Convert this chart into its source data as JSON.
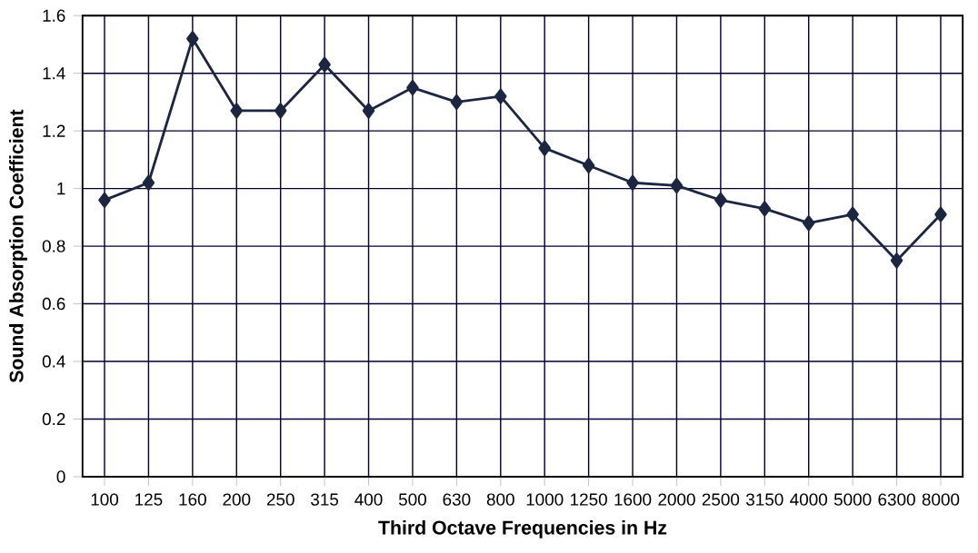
{
  "chart_data": {
    "type": "line",
    "xlabel": "Third Octave Frequencies in Hz",
    "ylabel": "Sound Absorption Coefficient",
    "categories": [
      "100",
      "125",
      "160",
      "200",
      "250",
      "315",
      "400",
      "500",
      "630",
      "800",
      "1000",
      "1250",
      "1600",
      "2000",
      "2500",
      "3150",
      "4000",
      "5000",
      "6300",
      "8000"
    ],
    "series": [
      {
        "color": "#1c2640",
        "values": [
          0.96,
          1.02,
          1.52,
          1.27,
          1.27,
          1.43,
          1.27,
          1.35,
          1.3,
          1.32,
          1.14,
          1.08,
          1.02,
          1.01,
          0.96,
          0.93,
          0.88,
          0.91,
          0.75,
          0.91
        ]
      }
    ],
    "ylim": [
      0,
      1.6
    ],
    "yticks": [
      0,
      0.2,
      0.4,
      0.6,
      0.8,
      1,
      1.2,
      1.4,
      1.6
    ],
    "grid": true,
    "marker": "diamond",
    "line_style": "solid"
  }
}
